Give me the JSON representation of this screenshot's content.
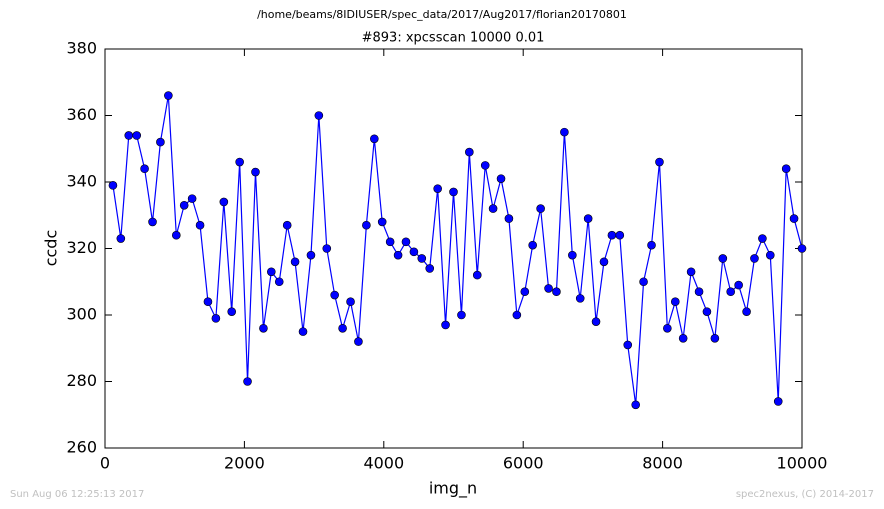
{
  "chart_data": {
    "type": "line",
    "suptitle": "/home/beams/8IDIUSER/spec_data/2017/Aug2017/florian20170801",
    "title": "#893: xpcsscan 10000 0.01",
    "xlabel": "img_n",
    "ylabel": "ccdc",
    "x": [
      114,
      227,
      341,
      455,
      568,
      682,
      795,
      909,
      1023,
      1136,
      1250,
      1364,
      1477,
      1591,
      1705,
      1818,
      1932,
      2045,
      2159,
      2273,
      2386,
      2500,
      2614,
      2727,
      2841,
      2955,
      3068,
      3182,
      3295,
      3409,
      3523,
      3636,
      3750,
      3864,
      3977,
      4091,
      4205,
      4318,
      4432,
      4545,
      4659,
      4773,
      4886,
      5000,
      5114,
      5227,
      5341,
      5455,
      5568,
      5682,
      5795,
      5909,
      6023,
      6136,
      6250,
      6364,
      6477,
      6591,
      6705,
      6818,
      6932,
      7045,
      7159,
      7273,
      7386,
      7500,
      7614,
      7727,
      7841,
      7955,
      8068,
      8182,
      8295,
      8409,
      8523,
      8636,
      8750,
      8864,
      8977,
      9091,
      9205,
      9318,
      9432,
      9545,
      9659,
      9773,
      9886,
      10000
    ],
    "series": [
      {
        "name": "ccdc",
        "color": "#0000ff",
        "values": [
          339,
          323,
          354,
          354,
          344,
          328,
          352,
          366,
          324,
          333,
          335,
          327,
          304,
          299,
          334,
          301,
          346,
          280,
          343,
          296,
          313,
          310,
          327,
          316,
          295,
          318,
          360,
          320,
          306,
          296,
          304,
          292,
          327,
          353,
          328,
          322,
          318,
          322,
          319,
          317,
          314,
          338,
          297,
          337,
          300,
          349,
          312,
          345,
          332,
          341,
          329,
          300,
          307,
          321,
          332,
          308,
          307,
          355,
          318,
          305,
          329,
          298,
          316,
          324,
          324,
          291,
          273,
          310,
          321,
          346,
          296,
          304,
          293,
          313,
          307,
          301,
          293,
          317,
          307,
          309,
          301,
          317,
          323,
          318,
          274,
          344,
          329,
          320
        ]
      }
    ],
    "xlim": [
      0,
      10000
    ],
    "xticks": [
      0,
      2000,
      4000,
      6000,
      8000,
      10000
    ],
    "ylim": [
      260,
      380
    ],
    "yticks": [
      260,
      280,
      300,
      320,
      340,
      360,
      380
    ]
  },
  "footer": {
    "timestamp": "Sun Aug 06 12:25:13 2017",
    "credit": "spec2nexus, (C) 2014-2017"
  }
}
